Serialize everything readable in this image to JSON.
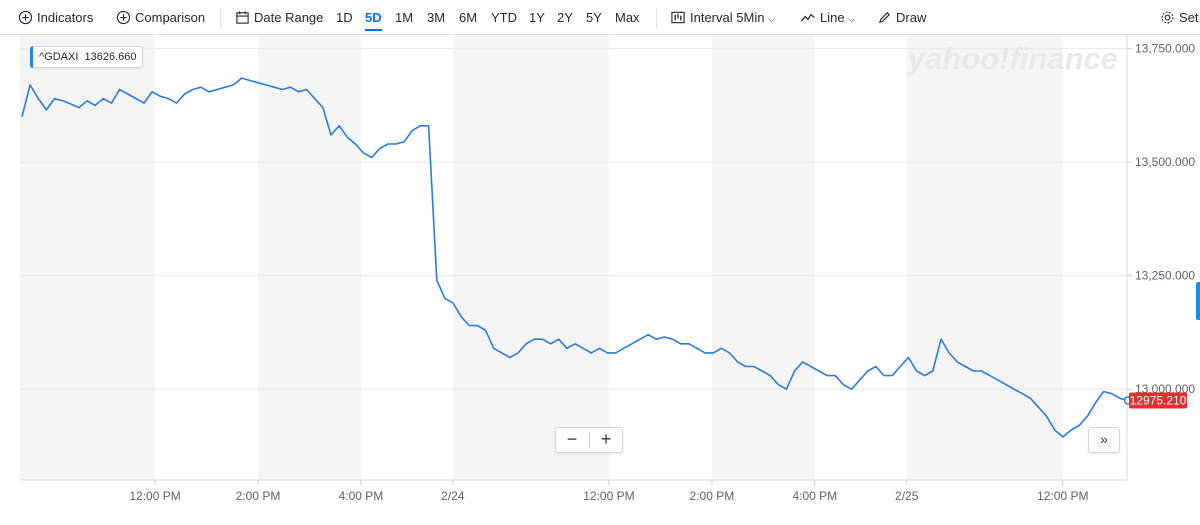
{
  "toolbar": {
    "indicators": "Indicators",
    "comparison": "Comparison",
    "date_range": "Date Range",
    "periods": [
      "1D",
      "5D",
      "1M",
      "3M",
      "6M",
      "YTD",
      "1Y",
      "2Y",
      "5Y",
      "Max"
    ],
    "active_period": "5D",
    "interval_label": "Interval",
    "interval_value": "5Min",
    "chart_type": "Line",
    "draw": "Draw",
    "settings": "Set"
  },
  "legend": {
    "symbol": "^GDAXI",
    "value": "13626.660"
  },
  "watermark": "yahoo!finance",
  "price_tag": "12975.210",
  "colors": {
    "line": "#2b7bd8",
    "accent": "#0f69ff",
    "price_tag": "#e0312f",
    "shade": "#f5f5f5"
  },
  "icons": {
    "zoom_out": "−",
    "zoom_in": "+",
    "scroll_right": "»"
  },
  "chart_data": {
    "type": "line",
    "symbol": "^GDAXI",
    "ylim": [
      12800,
      13780
    ],
    "y_ticks": [
      13000,
      13250,
      13500,
      13750
    ],
    "y_tick_labels": [
      "13,000.000",
      "13,250.000",
      "13,500.000",
      "13,750.000"
    ],
    "x_tick_labels": [
      "12:00 PM",
      "2:00 PM",
      "4:00 PM",
      "2/24",
      "12:00 PM",
      "2:00 PM",
      "4:00 PM",
      "2/25",
      "12:00 PM"
    ],
    "x_tick_positions": [
      0.122,
      0.215,
      0.308,
      0.391,
      0.532,
      0.625,
      0.718,
      0.801,
      0.942
    ],
    "shaded_bands": [
      [
        0,
        0.122
      ],
      [
        0.215,
        0.308
      ],
      [
        0.391,
        0.532
      ],
      [
        0.625,
        0.718
      ],
      [
        0.801,
        0.942
      ]
    ],
    "last_value": 12975.21,
    "values": [
      13600,
      13670,
      13640,
      13615,
      13640,
      13635,
      13628,
      13620,
      13635,
      13625,
      13640,
      13630,
      13660,
      13650,
      13640,
      13630,
      13655,
      13645,
      13640,
      13630,
      13650,
      13660,
      13665,
      13655,
      13660,
      13665,
      13670,
      13685,
      13680,
      13675,
      13670,
      13665,
      13660,
      13665,
      13655,
      13660,
      13640,
      13620,
      13560,
      13580,
      13555,
      13540,
      13520,
      13510,
      13530,
      13540,
      13540,
      13545,
      13570,
      13580,
      13580,
      13240,
      13200,
      13190,
      13160,
      13140,
      13140,
      13130,
      13090,
      13080,
      13070,
      13080,
      13100,
      13110,
      13110,
      13100,
      13110,
      13090,
      13100,
      13090,
      13080,
      13090,
      13080,
      13080,
      13090,
      13100,
      13110,
      13120,
      13110,
      13115,
      13110,
      13100,
      13100,
      13090,
      13080,
      13080,
      13090,
      13080,
      13060,
      13050,
      13050,
      13040,
      13030,
      13010,
      13000,
      13040,
      13060,
      13050,
      13040,
      13030,
      13030,
      13010,
      13000,
      13020,
      13040,
      13050,
      13030,
      13030,
      13050,
      13070,
      13040,
      13030,
      13040,
      13110,
      13080,
      13060,
      13050,
      13040,
      13040,
      13030,
      13020,
      13010,
      13000,
      12990,
      12980,
      12960,
      12940,
      12910,
      12895,
      12910,
      12920,
      12940,
      12970,
      12995,
      12990,
      12980,
      12975
    ]
  }
}
